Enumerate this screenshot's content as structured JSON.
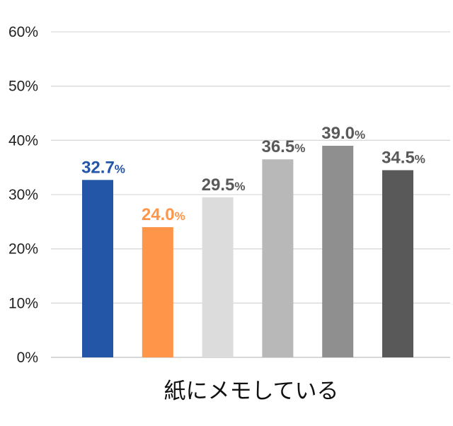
{
  "chart_data": {
    "type": "bar",
    "categories": [
      "紙にメモしている"
    ],
    "series": [
      {
        "value": 32.7,
        "value_label": "32.7",
        "unit": "%",
        "color": "#2456A8",
        "label_color": "#2456A8"
      },
      {
        "value": 24.0,
        "value_label": "24.0",
        "unit": "%",
        "color": "#FF9548",
        "label_color": "#FF9548"
      },
      {
        "value": 29.5,
        "value_label": "29.5",
        "unit": "%",
        "color": "#DCDCDC",
        "label_color": "#595959"
      },
      {
        "value": 36.5,
        "value_label": "36.5",
        "unit": "%",
        "color": "#B8B8B8",
        "label_color": "#595959"
      },
      {
        "value": 39.0,
        "value_label": "39.0",
        "unit": "%",
        "color": "#8F8F8F",
        "label_color": "#595959"
      },
      {
        "value": 34.5,
        "value_label": "34.5",
        "unit": "%",
        "color": "#595959",
        "label_color": "#595959"
      }
    ],
    "ylim": [
      0,
      60
    ],
    "yticks": [
      0,
      10,
      20,
      30,
      40,
      50,
      60
    ],
    "ytick_labels": [
      "0%",
      "10%",
      "20%",
      "30%",
      "40%",
      "50%",
      "60%"
    ],
    "grid": true,
    "gridline_color": "#D9D9D9",
    "title": "",
    "xlabel": "",
    "ylabel": ""
  }
}
